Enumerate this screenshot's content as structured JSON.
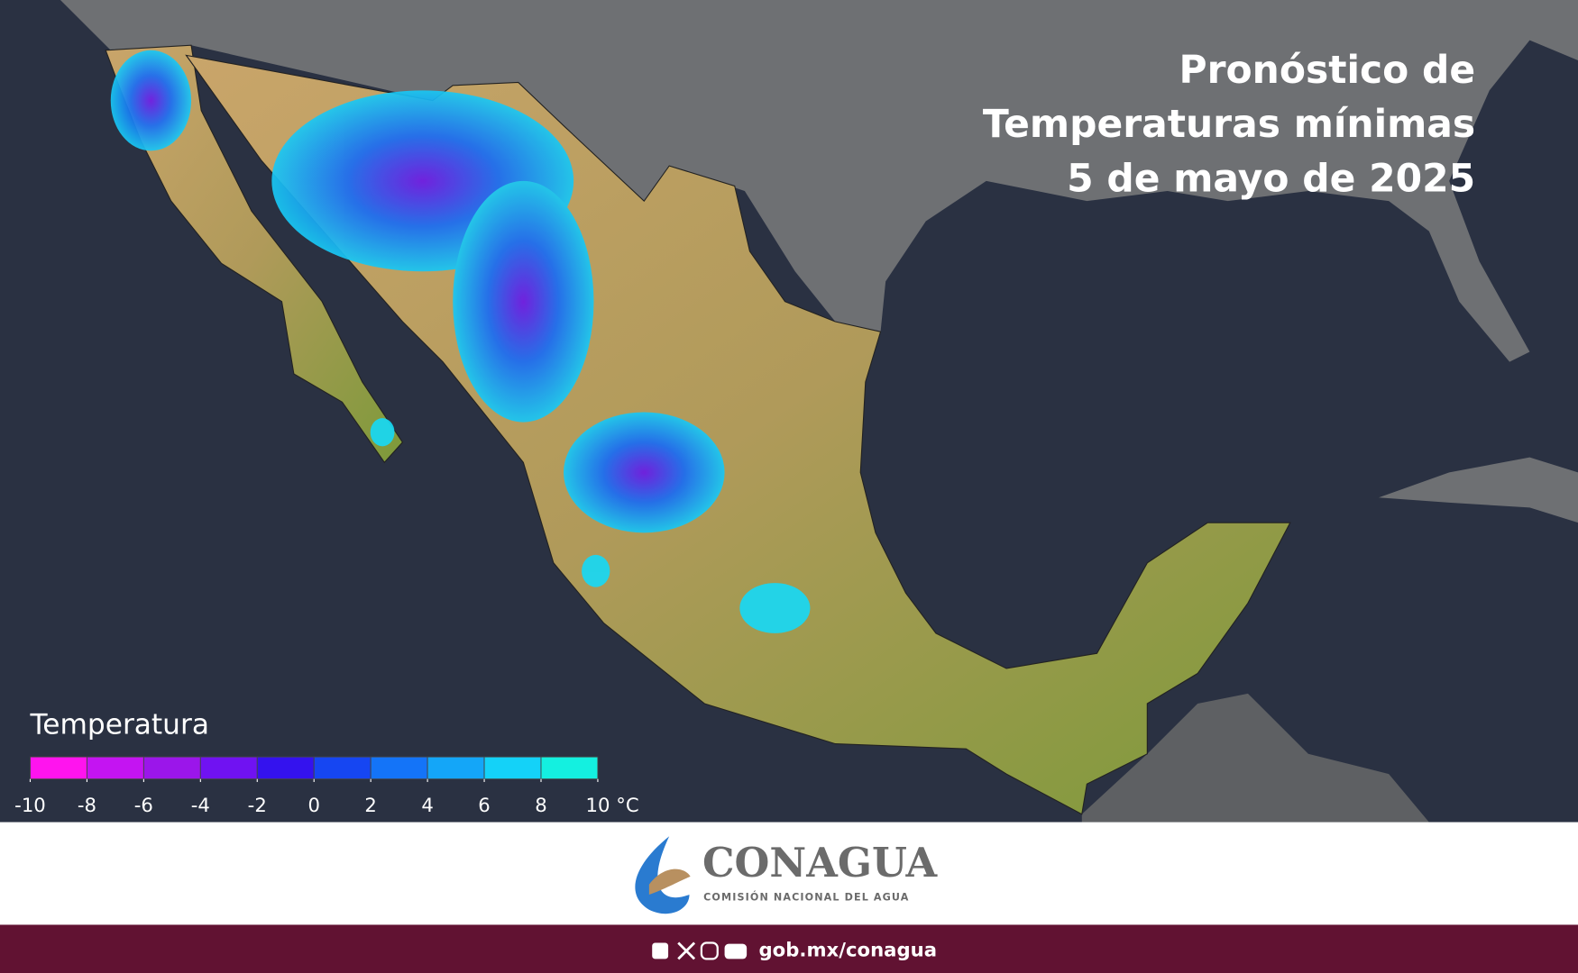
{
  "title": [
    "Pronóstico de",
    "Temperaturas mínimas",
    "5 de mayo de 2025"
  ],
  "legend": {
    "title": "Temperatura",
    "colors": [
      "#ff14ee",
      "#c414f2",
      "#9b16ea",
      "#7012f2",
      "#3412ee",
      "#1646f2",
      "#1474f8",
      "#14a6f8",
      "#14d2f8",
      "#14f0e0"
    ],
    "ticks": [
      -10,
      -8,
      -6,
      -4,
      -2,
      0,
      2,
      4,
      6,
      8,
      {
        "value": 10,
        "label": "10 °C"
      }
    ]
  },
  "footer": {
    "logo_name": "CONAGUA",
    "logo_subtitle": "COMISIÓN NACIONAL DEL AGUA",
    "url": "gob.mx/conagua"
  }
}
